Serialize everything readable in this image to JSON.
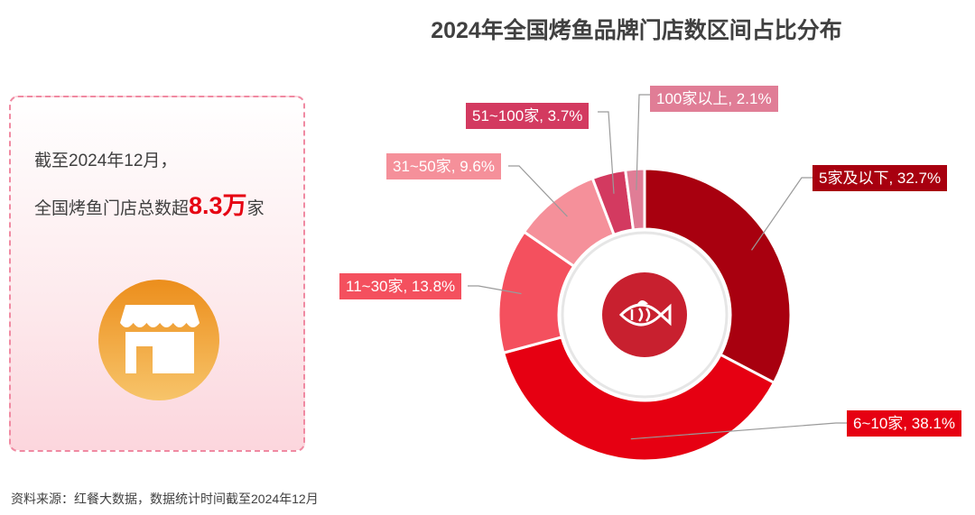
{
  "chart_data": {
    "type": "pie",
    "variant": "donut",
    "title": "2024年全国烤鱼品牌门店数区间占比分布",
    "unit": "%",
    "slices": [
      {
        "label": "5家及以下",
        "value": 32.7,
        "text": "5家及以下, 32.7%",
        "color": "#a8000f"
      },
      {
        "label": "6~10家",
        "value": 38.1,
        "text": "6~10家, 38.1%",
        "color": "#e60012"
      },
      {
        "label": "11~30家",
        "value": 13.8,
        "text": "11~30家, 13.8%",
        "color": "#f4505e"
      },
      {
        "label": "31~50家",
        "value": 9.6,
        "text": "31~50家, 9.6%",
        "color": "#f5909a"
      },
      {
        "label": "51~100家",
        "value": 3.7,
        "text": "51~100家, 3.7%",
        "color": "#d33a60"
      },
      {
        "label": "100家以上",
        "value": 2.1,
        "text": "100家以上, 2.1%",
        "color": "#e07d96"
      }
    ],
    "center_icon": "fish-icon",
    "center_color": "#c8202f"
  },
  "summary": {
    "line1": "截至2024年12月，",
    "line2_prefix": "全国烤鱼门店总数超",
    "highlight": "8.3万",
    "line2_suffix": "家",
    "icon": "shop-icon"
  },
  "source": "资料来源：红餐大数据，数据统计时间截至2024年12月"
}
